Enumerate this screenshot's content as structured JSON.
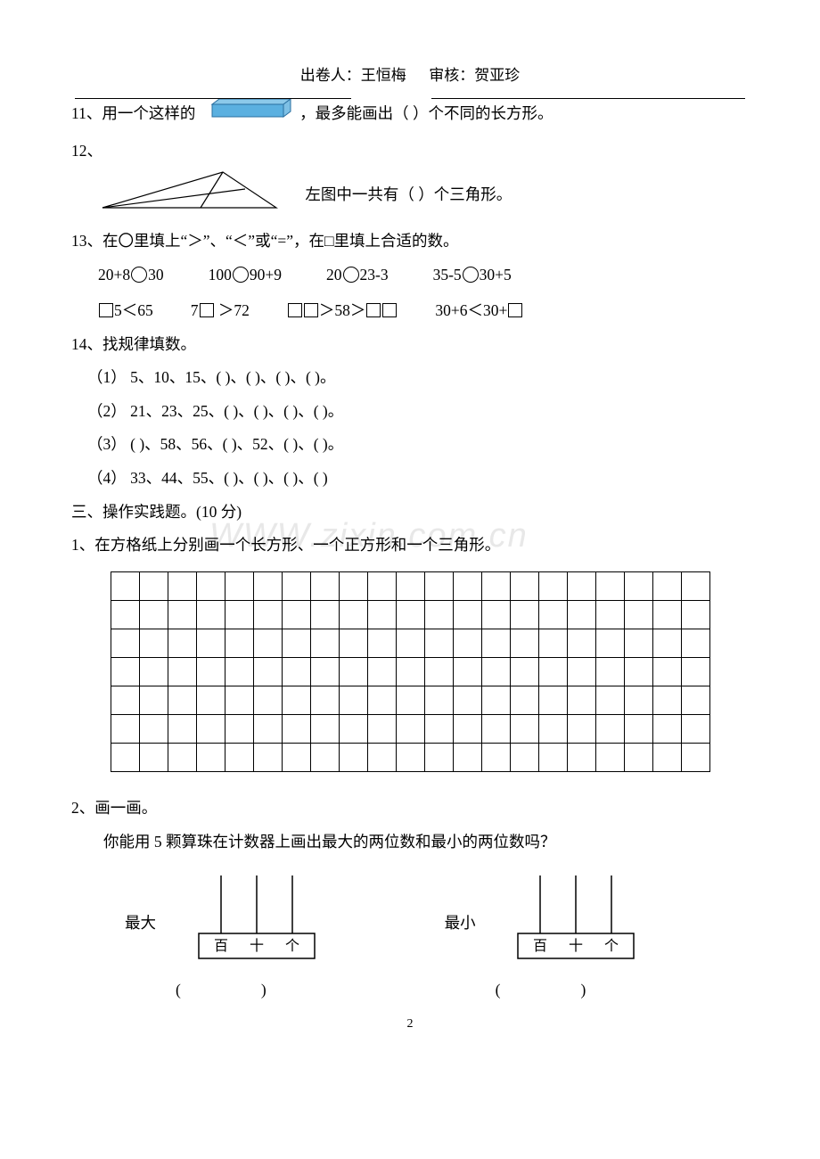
{
  "header": {
    "author_label": "出卷人：",
    "author": "王恒梅",
    "reviewer_label": "审核：",
    "reviewer": "贺亚珍"
  },
  "q11": {
    "pre": "11、用一个这样的",
    "post": "，最多能画出（  ）个不同的长方形。",
    "cuboid": {
      "fill": "#5bb0e0",
      "stroke": "#2a6fa0",
      "top_fill": "#8cc9ea"
    }
  },
  "q12": {
    "num": "12、",
    "caption": "左图中一共有（  ）个三角形。"
  },
  "q13": {
    "prompt": "13、在〇里填上“＞”、“＜”或“=”，在□里填上合适的数。",
    "row1": [
      "20+8",
      "30",
      "100",
      "90+9",
      "20",
      "23-3",
      "35-5",
      "30+5"
    ],
    "row2_a": "5＜65",
    "row2_b": "7",
    "row2_b2": " ＞72",
    "row2_c": "＞58＞",
    "row2_d": "30+6＜30+"
  },
  "q14": {
    "title": "14、找规律填数。",
    "items": [
      "（1）  5、10、15、(   )、(   )、(   )、(   )。",
      "（2）  21、23、25、(   )、(   )、(   )、(   )。",
      "（3）  (   )、58、56、(   )、52、(   )、(   )。",
      "（4）  33、44、55、(   )、(   )、(   )、(   )"
    ]
  },
  "section3": {
    "title": "三、操作实践题。(10 分)",
    "q1": "1、在方格纸上分别画一个长方形、一个正方形和一个三角形。",
    "grid": {
      "rows": 7,
      "cols": 21
    },
    "q2": "2、画一画。",
    "q2_sub": "你能用 5 颗算珠在计数器上画出最大的两位数和最小的两位数吗？",
    "max_label": "最大",
    "min_label": "最小",
    "places": [
      "百",
      "十",
      "个"
    ]
  },
  "watermark": "WWW.zixin.com.cn",
  "page_num": "2"
}
